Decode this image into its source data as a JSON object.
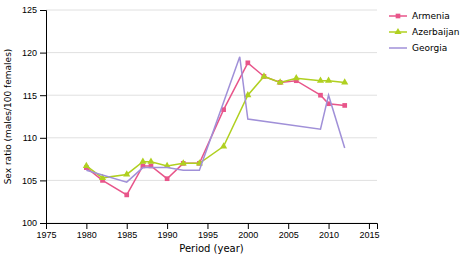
{
  "chart_data": {
    "type": "line",
    "xlabel": "Period (year)",
    "ylabel": "Sex ratio (males/100 females)",
    "series": [
      {
        "name": "Armenia",
        "color": "#e8558a",
        "marker": "square",
        "x": [
          1980,
          1982,
          1985,
          1987,
          1988,
          1990,
          1992,
          1994,
          1997,
          2000,
          2002,
          2004,
          2006,
          2009,
          2010,
          2012
        ],
        "values": [
          106.5,
          105.0,
          103.3,
          106.7,
          106.7,
          105.2,
          107.0,
          107.0,
          113.3,
          118.8,
          117.2,
          116.5,
          116.7,
          115.0,
          114.0,
          113.8
        ]
      },
      {
        "name": "Azerbaijan",
        "color": "#b0d020",
        "marker": "triangle",
        "x": [
          1980,
          1982,
          1985,
          1987,
          1988,
          1990,
          1992,
          1994,
          1997,
          2000,
          2002,
          2004,
          2006,
          2009,
          2010,
          2012
        ],
        "values": [
          106.7,
          105.3,
          105.7,
          107.2,
          107.2,
          106.7,
          107.0,
          107.0,
          109.0,
          115.0,
          117.2,
          116.5,
          117.0,
          116.7,
          116.7,
          116.5
        ]
      },
      {
        "name": "Georgia",
        "color": "#a090d8",
        "marker": "none",
        "x": [
          1980,
          1985,
          1987,
          1990,
          1992,
          1994,
          1999,
          2000,
          2009,
          2010,
          2012
        ],
        "values": [
          106.2,
          104.8,
          106.5,
          106.5,
          106.2,
          106.2,
          119.5,
          112.2,
          111.0,
          115.0,
          108.8
        ]
      }
    ],
    "xlim": [
      1975,
      2016
    ],
    "ylim": [
      100,
      125
    ],
    "xticks": [
      1975,
      1980,
      1985,
      1990,
      1995,
      2000,
      2005,
      2010,
      2015
    ],
    "yticks": [
      100,
      105,
      110,
      115,
      120,
      125
    ],
    "grid": "y",
    "legend": "right"
  }
}
